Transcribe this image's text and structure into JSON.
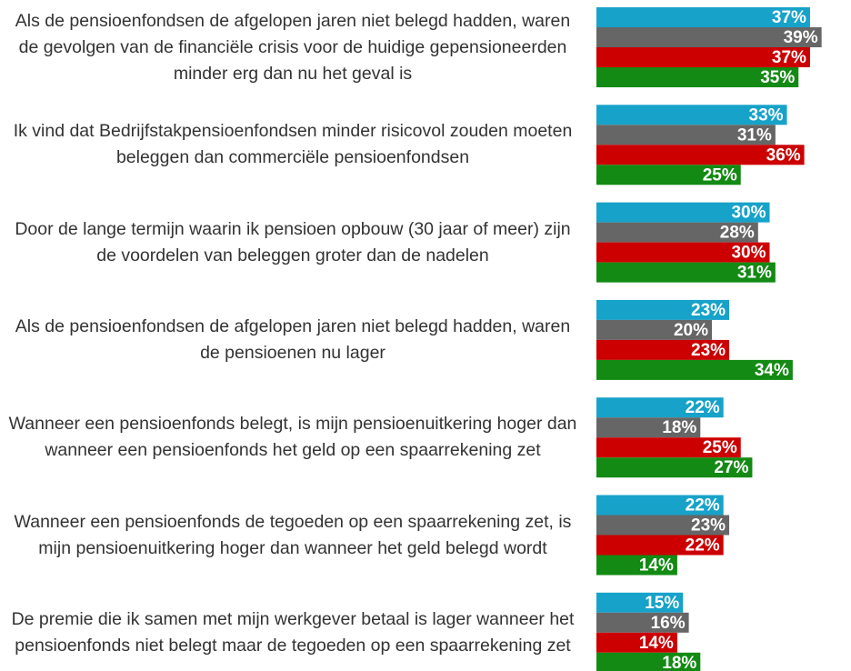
{
  "chart_data": {
    "type": "bar",
    "orientation": "horizontal",
    "categories": [
      "Als de pensioenfondsen de afgelopen jaren niet belegd hadden, waren de gevolgen van de financiële crisis voor de huidige gepensioneerden minder erg dan nu het geval is",
      "Ik vind dat Bedrijfstakpensioenfondsen minder risicovol zouden moeten beleggen dan commerciële pensioenfondsen",
      "Door de lange termijn waarin ik pensioen opbouw (30 jaar of meer) zijn de voordelen van beleggen groter dan de nadelen",
      "Als de pensioenfondsen de afgelopen jaren niet belegd hadden, waren de pensioenen nu lager",
      "Wanneer een pensioenfonds belegt, is mijn pensioenuitkering hoger dan wanneer een pensioenfonds het geld op een spaarrekening zet",
      "Wanneer een pensioenfonds de tegoeden op een spaarrekening zet, is mijn pensioenuitkering hoger dan wanneer het geld belegd wordt",
      "De premie die ik samen met mijn werkgever betaal is lager wanneer het pensioenfonds niet belegt maar de tegoeden op een spaarrekening zet"
    ],
    "series": [
      {
        "color": "#17a2c9",
        "values": [
          37,
          33,
          30,
          23,
          22,
          22,
          15
        ],
        "value_labels": [
          "37%",
          "33%",
          "30%",
          "23%",
          "22%",
          "22%",
          "15%"
        ]
      },
      {
        "color": "#666666",
        "values": [
          39,
          31,
          28,
          20,
          18,
          23,
          16
        ],
        "value_labels": [
          "39%",
          "31%",
          "28%",
          "20%",
          "18%",
          "23%",
          "16%"
        ]
      },
      {
        "color": "#cc0000",
        "values": [
          37,
          36,
          30,
          23,
          25,
          22,
          14
        ],
        "value_labels": [
          "37%",
          "36%",
          "30%",
          "23%",
          "25%",
          "22%",
          "14%"
        ]
      },
      {
        "color": "#138a13",
        "values": [
          35,
          25,
          31,
          34,
          27,
          14,
          18
        ],
        "value_labels": [
          "35%",
          "25%",
          "31%",
          "34%",
          "27%",
          "14%",
          "18%"
        ]
      }
    ]
  }
}
